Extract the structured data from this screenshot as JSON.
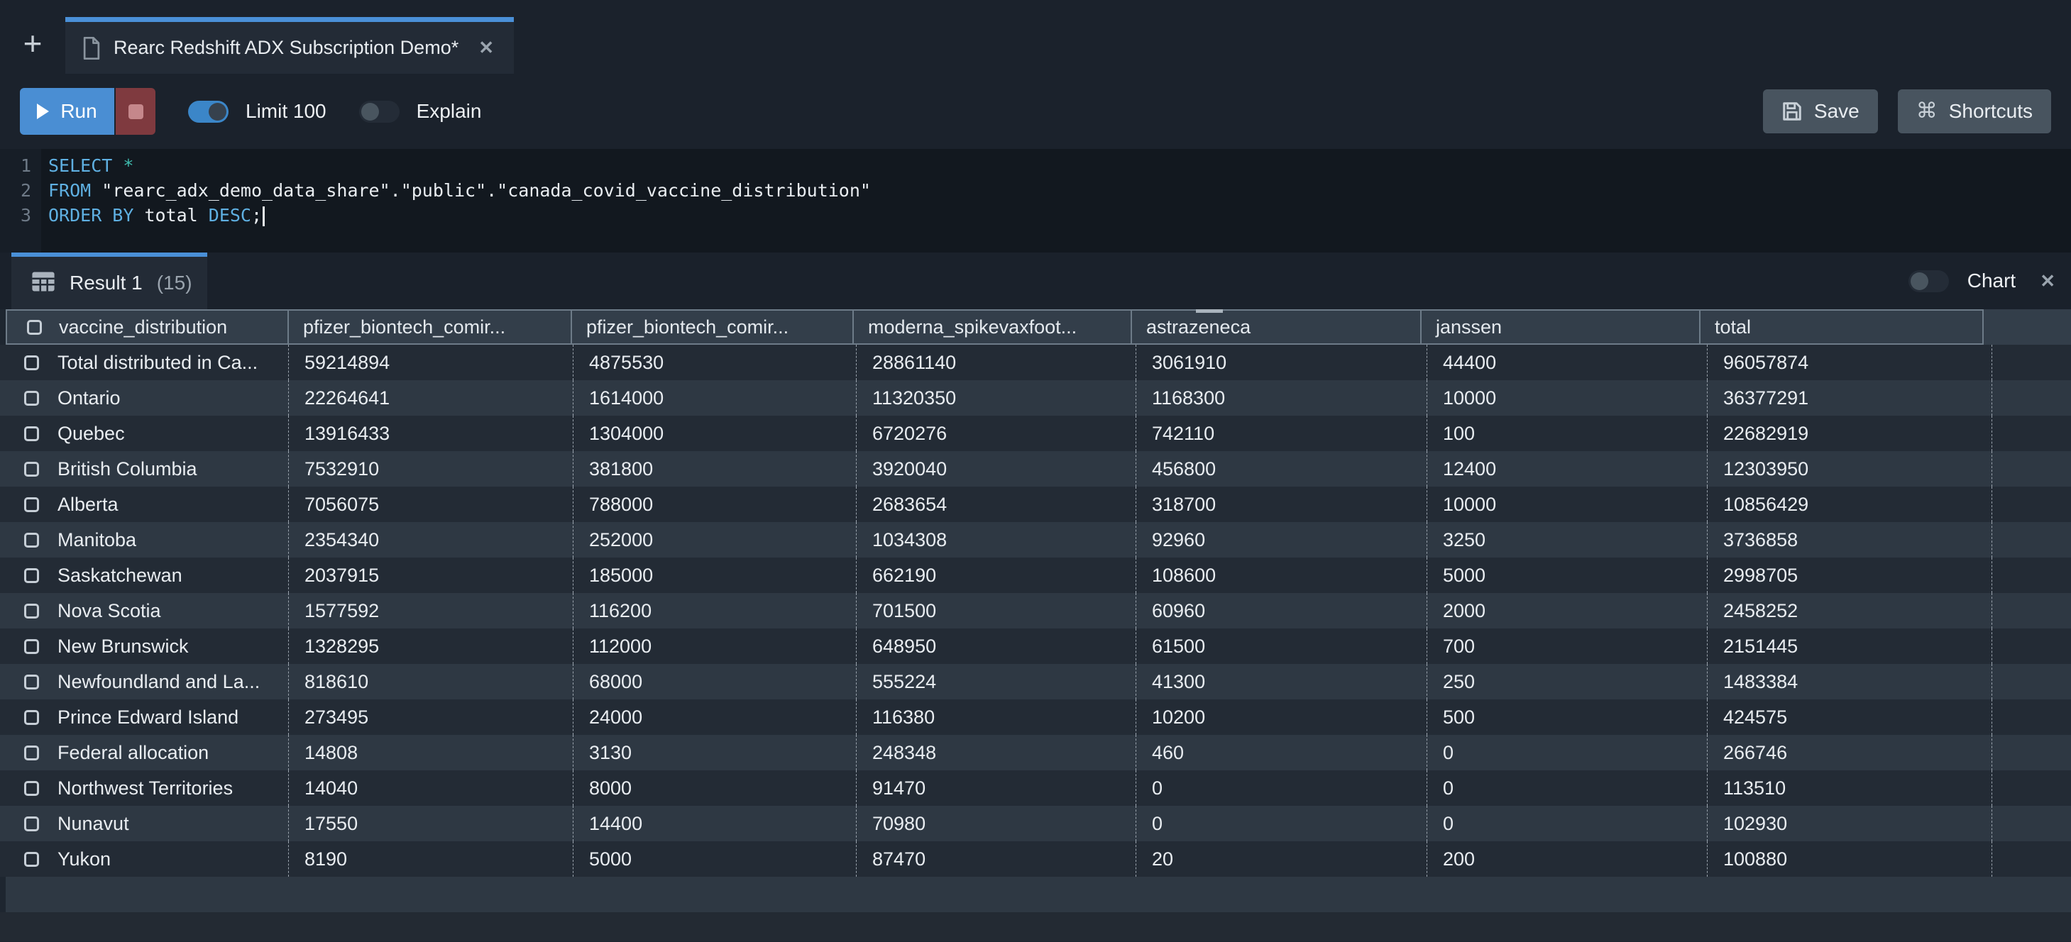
{
  "tab_bar": {
    "tab": {
      "title": "Rearc Redshift ADX Subscription Demo*",
      "close": "✕"
    }
  },
  "toolbar": {
    "run_label": "Run",
    "limit_toggle_label": "Limit 100",
    "explain_toggle_label": "Explain",
    "save_label": "Save",
    "shortcuts_label": "Shortcuts"
  },
  "editor": {
    "lines": [
      {
        "num": "1",
        "segments": [
          {
            "t": "SELECT",
            "c": "kw"
          },
          {
            "t": " ",
            "c": "plain"
          },
          {
            "t": "*",
            "c": "op"
          }
        ]
      },
      {
        "num": "2",
        "segments": [
          {
            "t": "FROM",
            "c": "kw"
          },
          {
            "t": " \"rearc_adx_demo_data_share\".\"public\".\"canada_covid_vaccine_distribution\"",
            "c": "plain"
          }
        ]
      },
      {
        "num": "3",
        "segments": [
          {
            "t": "ORDER BY",
            "c": "kw"
          },
          {
            "t": " total ",
            "c": "plain"
          },
          {
            "t": "DESC",
            "c": "kw"
          },
          {
            "t": ";",
            "c": "plain"
          }
        ],
        "cursor": true
      }
    ]
  },
  "results": {
    "tab_label": "Result 1",
    "tab_count": "(15)",
    "chart_label": "Chart",
    "close": "✕"
  },
  "table": {
    "columns": [
      "vaccine_distribution",
      "pfizer_biontech_comir...",
      "pfizer_biontech_comir...",
      "moderna_spikevaxfoot...",
      "astrazeneca",
      "janssen",
      "total"
    ],
    "rows": [
      [
        "Total distributed in Ca...",
        "59214894",
        "4875530",
        "28861140",
        "3061910",
        "44400",
        "96057874"
      ],
      [
        "Ontario",
        "22264641",
        "1614000",
        "11320350",
        "1168300",
        "10000",
        "36377291"
      ],
      [
        "Quebec",
        "13916433",
        "1304000",
        "6720276",
        "742110",
        "100",
        "22682919"
      ],
      [
        "British Columbia",
        "7532910",
        "381800",
        "3920040",
        "456800",
        "12400",
        "12303950"
      ],
      [
        "Alberta",
        "7056075",
        "788000",
        "2683654",
        "318700",
        "10000",
        "10856429"
      ],
      [
        "Manitoba",
        "2354340",
        "252000",
        "1034308",
        "92960",
        "3250",
        "3736858"
      ],
      [
        "Saskatchewan",
        "2037915",
        "185000",
        "662190",
        "108600",
        "5000",
        "2998705"
      ],
      [
        "Nova Scotia",
        "1577592",
        "116200",
        "701500",
        "60960",
        "2000",
        "2458252"
      ],
      [
        "New Brunswick",
        "1328295",
        "112000",
        "648950",
        "61500",
        "700",
        "2151445"
      ],
      [
        "Newfoundland and La...",
        "818610",
        "68000",
        "555224",
        "41300",
        "250",
        "1483384"
      ],
      [
        "Prince Edward Island",
        "273495",
        "24000",
        "116380",
        "10200",
        "500",
        "424575"
      ],
      [
        "Federal allocation",
        "14808",
        "3130",
        "248348",
        "460",
        "0",
        "266746"
      ],
      [
        "Northwest Territories",
        "14040",
        "8000",
        "91470",
        "0",
        "0",
        "113510"
      ],
      [
        "Nunavut",
        "17550",
        "14400",
        "70980",
        "0",
        "0",
        "102930"
      ],
      [
        "Yukon",
        "8190",
        "5000",
        "87470",
        "20",
        "200",
        "100880"
      ]
    ]
  },
  "colors": {
    "accent_blue": "#4a90d8",
    "run_blue": "#4a8ed3",
    "stop_red": "#7f3a3f",
    "keyword_blue": "#5fb0e2",
    "operator_teal": "#3fbcae",
    "header_bg": "#333e4a",
    "row_dark": "#232b35",
    "row_light": "#2e3843"
  }
}
